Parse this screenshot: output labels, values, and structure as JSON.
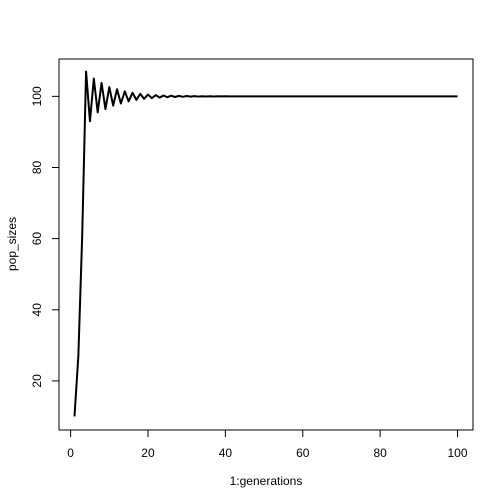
{
  "chart_data": {
    "type": "line",
    "xlabel": "1:generations",
    "ylabel": "pop_sizes",
    "xlim": [
      -3,
      104
    ],
    "ylim": [
      6.2,
      110.5
    ],
    "x_ticks": [
      0,
      20,
      40,
      60,
      80,
      100
    ],
    "y_ticks": [
      20,
      40,
      60,
      80,
      100
    ],
    "grid": false,
    "line_color": "#000000",
    "series": [
      {
        "x": [
          1,
          2,
          3,
          4,
          5,
          6,
          7,
          8,
          9,
          10,
          11,
          12,
          13,
          14,
          15,
          16,
          17,
          18,
          19,
          20,
          21,
          22,
          23,
          24,
          25,
          26,
          27,
          28,
          29,
          30,
          31,
          32,
          33,
          34,
          35,
          36,
          37,
          38,
          39,
          40,
          41,
          42,
          43,
          44,
          45,
          46,
          47,
          48,
          49,
          50,
          51,
          52,
          53,
          54,
          55,
          56,
          57,
          58,
          59,
          60,
          61,
          62,
          63,
          64,
          65,
          66,
          67,
          68,
          69,
          70,
          71,
          72,
          73,
          74,
          75,
          76,
          77,
          78,
          79,
          80,
          81,
          82,
          83,
          84,
          85,
          86,
          87,
          88,
          89,
          90,
          91,
          92,
          93,
          94,
          95,
          96,
          97,
          98,
          99,
          100
        ],
        "y": [
          10,
          27,
          61,
          107,
          93,
          105,
          95.5,
          103.8,
          96.4,
          102.6,
          97.4,
          102,
          98,
          101.4,
          98.6,
          101,
          99,
          100.7,
          99.3,
          100.5,
          99.5,
          100.35,
          99.65,
          100.25,
          99.75,
          100.18,
          99.82,
          100.13,
          99.87,
          100.09,
          99.91,
          100.06,
          99.94,
          100.04,
          99.96,
          100.03,
          99.97,
          100.02,
          99.98,
          100.01,
          99.99,
          100,
          100,
          100,
          100,
          100,
          100,
          100,
          100,
          100,
          100,
          100,
          100,
          100,
          100,
          100,
          100,
          100,
          100,
          100,
          100,
          100,
          100,
          100,
          100,
          100,
          100,
          100,
          100,
          100,
          100,
          100,
          100,
          100,
          100,
          100,
          100,
          100,
          100,
          100,
          100,
          100,
          100,
          100,
          100,
          100,
          100,
          100,
          100,
          100,
          100,
          100,
          100,
          100,
          100,
          100,
          100,
          100,
          100,
          100
        ]
      }
    ]
  }
}
